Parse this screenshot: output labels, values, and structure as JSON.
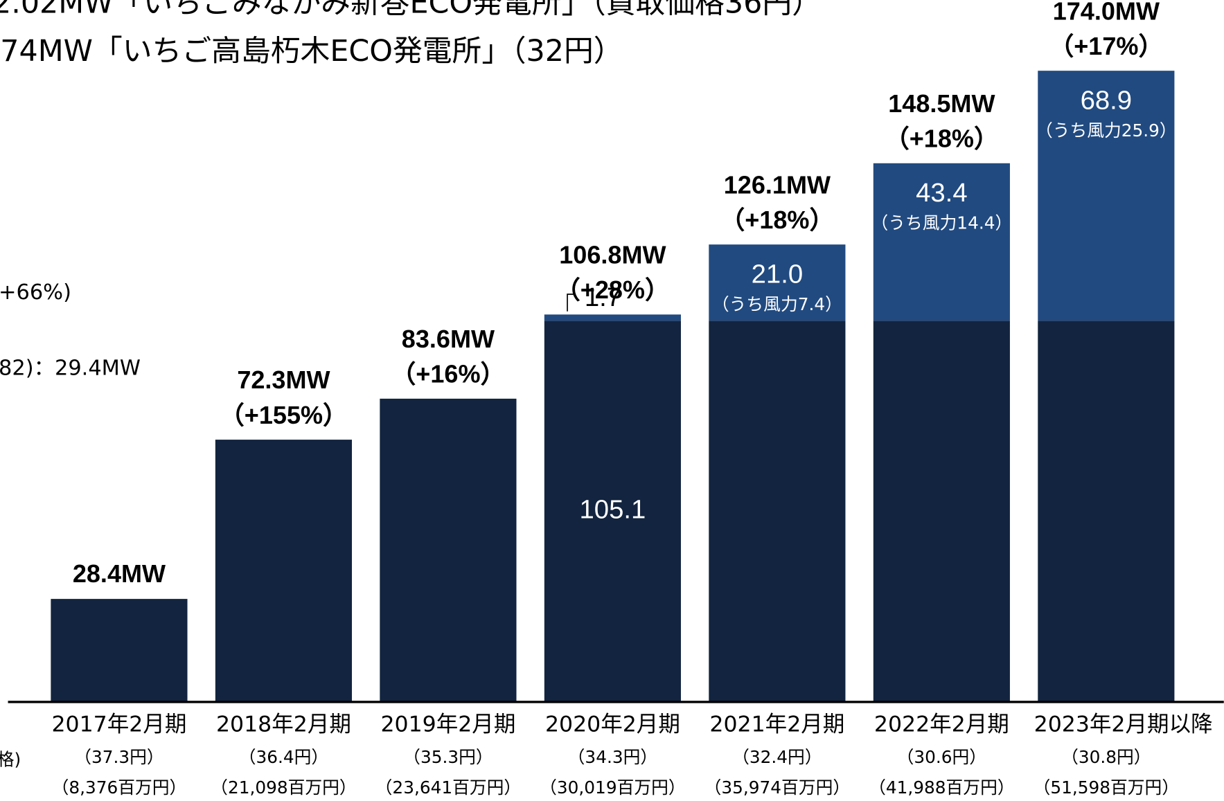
{
  "chart_data": {
    "type": "bar",
    "stacked": true,
    "annotations": [
      "2.02MW「いちごみなかみ新巻ECO発電所」（買取価格36円）",
      "74MW「いちご高島朽木ECO発電所」（32円）",
      "+66%)",
      "82)：29.4MW",
      "格)",
      ")"
    ],
    "categories": [
      "2017年2月期",
      "2018年2月期",
      "2019年2月期",
      "2020年2月期",
      "2021年2月期",
      "2022年2月期",
      "2023年2月期以降"
    ],
    "price_labels": [
      "（37.3円）",
      "（36.4円）",
      "（35.3円）",
      "（34.3円）",
      "（32.4円）",
      "（30.6円）",
      "（30.8円）"
    ],
    "amount_labels": [
      "（8,376百万円）",
      "（21,098百万円）",
      "（23,641百万円）",
      "（30,019百万円）",
      "（35,974百万円）",
      "（41,988百万円）",
      "（51,598百万円）"
    ],
    "total_labels": [
      "28.4MW",
      "72.3MW",
      "83.6MW",
      "106.8MW",
      "126.1MW",
      "148.5MW",
      "174.0MW"
    ],
    "growth_labels": [
      null,
      "（+155%）",
      "（+16%）",
      "（+28%）",
      "（+18%）",
      "（+18%）",
      "（+17%）"
    ],
    "series": [
      {
        "color": "#12243f",
        "values": [
          28.4,
          72.3,
          83.6,
          105.1,
          105.1,
          105.1,
          105.1
        ],
        "value_labels": [
          null,
          null,
          null,
          "105.1",
          null,
          null,
          null
        ]
      },
      {
        "color": "#214a80",
        "values": [
          null,
          null,
          null,
          1.7,
          21.0,
          43.4,
          68.9
        ],
        "value_labels": [
          null,
          null,
          null,
          "1.7",
          "21.0",
          "43.4",
          "68.9"
        ],
        "sub_labels": [
          null,
          null,
          null,
          null,
          "（うち風力7.4）",
          "（うち風力14.4）",
          "（うち風力25.9）"
        ]
      }
    ],
    "ylim": [
      0,
      193.5
    ]
  }
}
